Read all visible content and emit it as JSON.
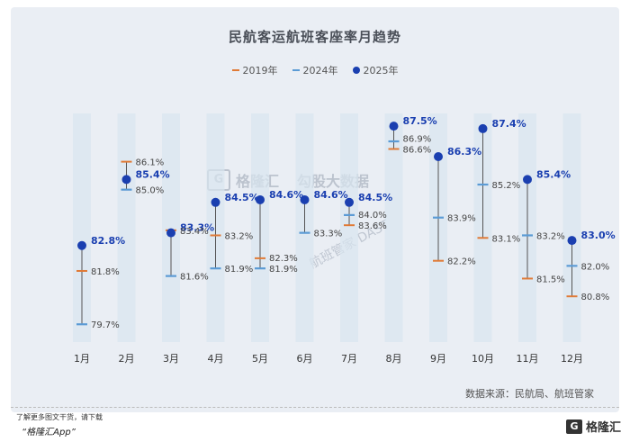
{
  "chart_data": {
    "type": "dot-range",
    "title": "民航客运航班客座率月趋势",
    "legend": [
      {
        "name": "2019年",
        "color": "#e07a36",
        "marker": "dash"
      },
      {
        "name": "2024年",
        "color": "#5b9bd5",
        "marker": "dash"
      },
      {
        "name": "2025年",
        "color": "#1a3fb0",
        "marker": "dot"
      }
    ],
    "categories": [
      "1月",
      "2月",
      "3月",
      "4月",
      "5月",
      "6月",
      "7月",
      "8月",
      "9月",
      "10月",
      "11月",
      "12月"
    ],
    "series": [
      {
        "name": "2019年",
        "values": [
          81.8,
          86.1,
          83.4,
          83.2,
          82.3,
          null,
          83.6,
          86.6,
          82.2,
          83.1,
          81.5,
          80.8
        ]
      },
      {
        "name": "2024年",
        "values": [
          79.7,
          85.0,
          81.6,
          81.9,
          81.9,
          83.3,
          84.0,
          86.9,
          83.9,
          85.2,
          83.2,
          82.0
        ]
      },
      {
        "name": "2025年",
        "values": [
          82.8,
          85.4,
          83.3,
          84.5,
          84.6,
          84.6,
          84.5,
          87.5,
          86.3,
          87.4,
          85.4,
          83.0
        ]
      }
    ],
    "labels": {
      "2019年": [
        "81.8%",
        "86.1%",
        "83.4%",
        "83.2%",
        "82.3%",
        "",
        "83.6%",
        "86.6%",
        "82.2%",
        "83.1%",
        "81.5%",
        "80.8%"
      ],
      "2024年": [
        "79.7%",
        "85.0%",
        "81.6%",
        "81.9%",
        "81.9%",
        "83.3%",
        "84.0%",
        "86.9%",
        "83.9%",
        "85.2%",
        "83.2%",
        "82.0%"
      ],
      "2025年": [
        "82.8%",
        "85.4%",
        "83.3%",
        "84.5%",
        "84.6%",
        "84.6%",
        "84.5%",
        "87.5%",
        "86.3%",
        "87.4%",
        "85.4%",
        "83.0%"
      ]
    },
    "ylim": [
      79.0,
      88.0
    ]
  },
  "source": "数据来源：民航局、航班管家",
  "footer": {
    "line1": "了解更多图文干货，请下载",
    "line2": "“格隆汇App”",
    "logo_mark": "G",
    "logo_text": "格隆汇"
  },
  "watermarks": {
    "brand_mark": "G",
    "brand": "格隆汇",
    "partner": "勾股大数据",
    "diagonal": "航班管家 DAST"
  }
}
